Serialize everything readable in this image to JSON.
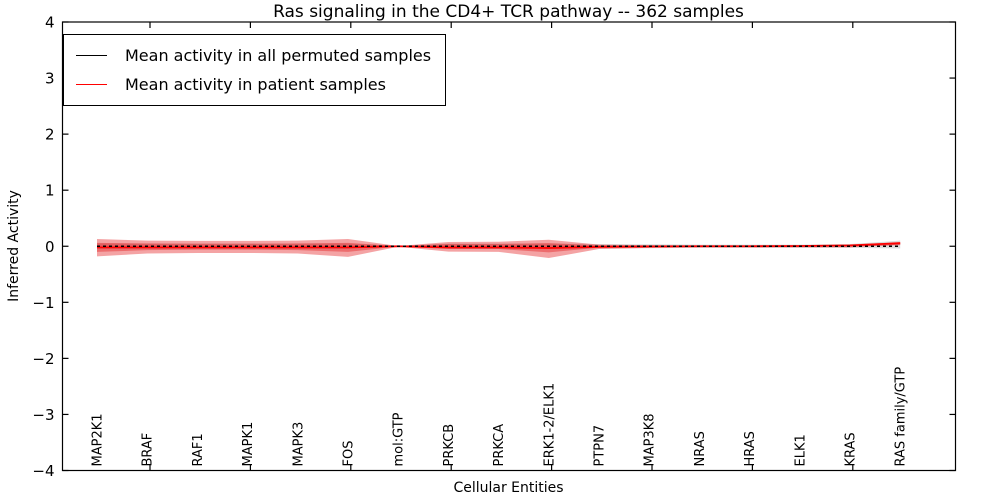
{
  "figure": {
    "title": "Ras signaling in the CD4+ TCR pathway -- 362 samples",
    "background": "#ffffff",
    "frame_color": "#000000"
  },
  "chart_data": {
    "type": "line",
    "title": "Ras signaling in the CD4+ TCR pathway -- 362 samples",
    "xlabel": "Cellular Entities",
    "ylabel": "Inferred Activity",
    "ylim": [
      -4,
      4
    ],
    "yticks": [
      4,
      3,
      2,
      1,
      0,
      -1,
      -2,
      -3,
      -4
    ],
    "yticklabels": [
      "4",
      "3",
      "2",
      "1",
      "0",
      "−1",
      "−2",
      "−3",
      "−4"
    ],
    "grid": false,
    "legend_position": "upper-left",
    "categories": [
      "MAP2K1",
      "BRAF",
      "RAF1",
      "MAPK1",
      "MAPK3",
      "FOS",
      "mol:GTP",
      "PRKCB",
      "PRKCA",
      "ERK1-2/ELK1",
      "PTPN7",
      "MAP3K8",
      "NRAS",
      "HRAS",
      "ELK1",
      "KRAS",
      "RAS family/GTP"
    ],
    "series": [
      {
        "name": "Mean activity in all permuted samples",
        "color": "#000000",
        "style": "dashed",
        "values": [
          0,
          0,
          0,
          0,
          0,
          0,
          0,
          0,
          0,
          0,
          0,
          0,
          0,
          0,
          0,
          0,
          0
        ]
      },
      {
        "name": "Mean activity in patient samples",
        "color": "#ff0000",
        "style": "solid",
        "values": [
          -0.02,
          -0.02,
          -0.02,
          -0.02,
          -0.02,
          -0.02,
          0.0,
          -0.02,
          -0.02,
          -0.03,
          -0.01,
          -0.005,
          0.0,
          0.0,
          0.005,
          0.015,
          0.055
        ]
      }
    ],
    "bands": [
      {
        "name": "permuted-sample-range",
        "color": "rgba(0,0,0,0.14)",
        "top": [
          0.05,
          0.05,
          0.05,
          0.05,
          0.05,
          0.05,
          0.008,
          0.05,
          0.05,
          0.05,
          0.04,
          0.035,
          0.03,
          0.03,
          0.03,
          0.04,
          0.1
        ],
        "bottom": [
          -0.05,
          -0.05,
          -0.05,
          -0.05,
          -0.05,
          -0.05,
          -0.008,
          -0.05,
          -0.05,
          -0.05,
          -0.04,
          -0.035,
          -0.03,
          -0.03,
          -0.03,
          -0.03,
          -0.04
        ]
      },
      {
        "name": "patient-sample-range-outer",
        "color": "rgba(228,26,28,0.40)",
        "top": [
          0.13,
          0.1,
          0.095,
          0.095,
          0.1,
          0.13,
          0.005,
          0.075,
          0.08,
          0.115,
          0.03,
          0.02,
          0.015,
          0.015,
          0.015,
          0.025,
          0.075
        ],
        "bottom": [
          -0.18,
          -0.13,
          -0.12,
          -0.12,
          -0.13,
          -0.19,
          -0.008,
          -0.095,
          -0.1,
          -0.21,
          -0.05,
          -0.03,
          -0.02,
          -0.02,
          -0.02,
          -0.02,
          0.03
        ]
      },
      {
        "name": "patient-sample-range-inner",
        "color": "rgba(228,26,28,0.40)",
        "top": [
          0.06,
          0.05,
          0.045,
          0.045,
          0.05,
          0.06,
          0.003,
          0.04,
          0.04,
          0.055,
          0.015,
          0.01,
          0.008,
          0.008,
          0.008,
          0.012,
          0.045
        ],
        "bottom": [
          -0.1,
          -0.07,
          -0.06,
          -0.06,
          -0.07,
          -0.1,
          -0.004,
          -0.05,
          -0.05,
          -0.11,
          -0.025,
          -0.015,
          -0.01,
          -0.01,
          -0.01,
          -0.01,
          0.02
        ]
      }
    ]
  },
  "legend": {
    "entries": [
      {
        "label": "Mean activity in all permuted samples",
        "color": "#000000"
      },
      {
        "label": "Mean activity in patient samples",
        "color": "#ff0000"
      }
    ]
  }
}
